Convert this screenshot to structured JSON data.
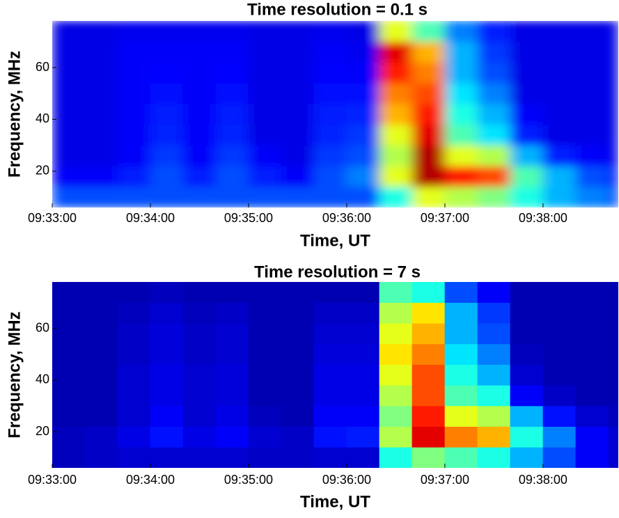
{
  "chart_data": [
    {
      "type": "heatmap",
      "title": "Time resolution = 0.1 s",
      "xlabel": "Time, UT",
      "ylabel": "Frequency, MHz",
      "colormap": "jet",
      "smooth": true,
      "xlim": [
        34380,
        34726
      ],
      "ylim": [
        6,
        78
      ],
      "xticks": [
        {
          "value": 34380,
          "label": "09:33:00"
        },
        {
          "value": 34440,
          "label": "09:34:00"
        },
        {
          "value": 34500,
          "label": "09:35:00"
        },
        {
          "value": 34560,
          "label": "09:36:00"
        },
        {
          "value": 34620,
          "label": "09:37:00"
        },
        {
          "value": 34680,
          "label": "09:38:00"
        }
      ],
      "yticks": [
        20,
        40,
        60
      ],
      "x_bins": [
        34380,
        34400,
        34420,
        34440,
        34460,
        34480,
        34500,
        34520,
        34540,
        34560,
        34580,
        34600,
        34620,
        34640,
        34660,
        34680,
        34700,
        34720,
        34726
      ],
      "y_bins": [
        6,
        14,
        22,
        30,
        38,
        46,
        54,
        62,
        70,
        78
      ],
      "z": [
        [
          0.2,
          0.2,
          0.2,
          0.2,
          0.2,
          0.2,
          0.2,
          0.2,
          0.2,
          0.2,
          0.4,
          0.6,
          0.55,
          0.5,
          0.4,
          0.3,
          0.25,
          0.2
        ],
        [
          0.12,
          0.12,
          0.15,
          0.2,
          0.15,
          0.2,
          0.15,
          0.12,
          0.2,
          0.25,
          0.6,
          0.95,
          0.85,
          0.8,
          0.45,
          0.3,
          0.2,
          0.15
        ],
        [
          0.1,
          0.1,
          0.12,
          0.18,
          0.12,
          0.18,
          0.12,
          0.1,
          0.18,
          0.2,
          0.55,
          0.95,
          0.6,
          0.55,
          0.3,
          0.15,
          0.12,
          0.1
        ],
        [
          0.1,
          0.1,
          0.12,
          0.16,
          0.12,
          0.16,
          0.1,
          0.1,
          0.16,
          0.18,
          0.6,
          0.9,
          0.45,
          0.35,
          0.15,
          0.1,
          0.1,
          0.1
        ],
        [
          0.1,
          0.1,
          0.12,
          0.15,
          0.12,
          0.15,
          0.1,
          0.1,
          0.15,
          0.16,
          0.7,
          0.85,
          0.4,
          0.3,
          0.12,
          0.1,
          0.1,
          0.1
        ],
        [
          0.1,
          0.1,
          0.12,
          0.14,
          0.12,
          0.14,
          0.1,
          0.1,
          0.14,
          0.14,
          0.75,
          0.8,
          0.35,
          0.25,
          0.1,
          0.1,
          0.1,
          0.1
        ],
        [
          0.1,
          0.1,
          0.12,
          0.13,
          0.12,
          0.13,
          0.1,
          0.1,
          0.13,
          0.12,
          0.85,
          0.75,
          0.3,
          0.2,
          0.1,
          0.1,
          0.1,
          0.1
        ],
        [
          0.1,
          0.1,
          0.12,
          0.12,
          0.12,
          0.12,
          0.1,
          0.1,
          0.12,
          0.11,
          0.9,
          0.7,
          0.3,
          0.18,
          0.1,
          0.1,
          0.1,
          0.1
        ],
        [
          0.1,
          0.1,
          0.11,
          0.11,
          0.11,
          0.11,
          0.1,
          0.1,
          0.11,
          0.1,
          0.6,
          0.45,
          0.25,
          0.15,
          0.1,
          0.1,
          0.1,
          0.1
        ]
      ]
    },
    {
      "type": "heatmap",
      "title": "Time resolution = 7 s",
      "xlabel": "Time, UT",
      "ylabel": "Frequency, MHz",
      "colormap": "jet",
      "smooth": false,
      "xlim": [
        34380,
        34726
      ],
      "ylim": [
        6,
        78
      ],
      "xticks": [
        {
          "value": 34380,
          "label": "09:33:00"
        },
        {
          "value": 34440,
          "label": "09:34:00"
        },
        {
          "value": 34500,
          "label": "09:35:00"
        },
        {
          "value": 34560,
          "label": "09:36:00"
        },
        {
          "value": 34620,
          "label": "09:37:00"
        },
        {
          "value": 34680,
          "label": "09:38:00"
        }
      ],
      "yticks": [
        20,
        40,
        60
      ],
      "x_bins": [
        34380,
        34400,
        34420,
        34440,
        34460,
        34480,
        34500,
        34520,
        34540,
        34560,
        34580,
        34600,
        34620,
        34640,
        34660,
        34680,
        34700,
        34720,
        34726
      ],
      "y_bins": [
        6,
        14,
        22,
        30,
        38,
        46,
        54,
        62,
        70,
        78
      ],
      "z": [
        [
          0.06,
          0.07,
          0.08,
          0.08,
          0.08,
          0.08,
          0.07,
          0.07,
          0.08,
          0.08,
          0.4,
          0.5,
          0.45,
          0.4,
          0.3,
          0.2,
          0.12,
          0.08
        ],
        [
          0.06,
          0.07,
          0.1,
          0.14,
          0.1,
          0.12,
          0.08,
          0.07,
          0.14,
          0.15,
          0.55,
          0.9,
          0.75,
          0.7,
          0.4,
          0.25,
          0.12,
          0.08
        ],
        [
          0.05,
          0.05,
          0.08,
          0.12,
          0.08,
          0.1,
          0.06,
          0.05,
          0.12,
          0.12,
          0.5,
          0.85,
          0.6,
          0.55,
          0.3,
          0.14,
          0.08,
          0.06
        ],
        [
          0.05,
          0.05,
          0.08,
          0.1,
          0.08,
          0.09,
          0.05,
          0.05,
          0.1,
          0.1,
          0.55,
          0.8,
          0.45,
          0.4,
          0.12,
          0.07,
          0.05,
          0.05
        ],
        [
          0.05,
          0.05,
          0.08,
          0.1,
          0.08,
          0.09,
          0.05,
          0.05,
          0.1,
          0.1,
          0.6,
          0.8,
          0.4,
          0.3,
          0.08,
          0.05,
          0.05,
          0.05
        ],
        [
          0.05,
          0.05,
          0.07,
          0.09,
          0.07,
          0.08,
          0.05,
          0.05,
          0.09,
          0.09,
          0.65,
          0.75,
          0.35,
          0.25,
          0.06,
          0.05,
          0.05,
          0.05
        ],
        [
          0.05,
          0.05,
          0.07,
          0.09,
          0.07,
          0.08,
          0.05,
          0.05,
          0.08,
          0.08,
          0.6,
          0.7,
          0.3,
          0.2,
          0.05,
          0.05,
          0.05,
          0.05
        ],
        [
          0.05,
          0.05,
          0.06,
          0.08,
          0.06,
          0.07,
          0.05,
          0.05,
          0.07,
          0.07,
          0.55,
          0.65,
          0.3,
          0.18,
          0.05,
          0.05,
          0.05,
          0.05
        ],
        [
          0.05,
          0.05,
          0.05,
          0.06,
          0.05,
          0.05,
          0.05,
          0.05,
          0.05,
          0.05,
          0.45,
          0.4,
          0.2,
          0.12,
          0.05,
          0.05,
          0.05,
          0.05
        ]
      ]
    }
  ]
}
